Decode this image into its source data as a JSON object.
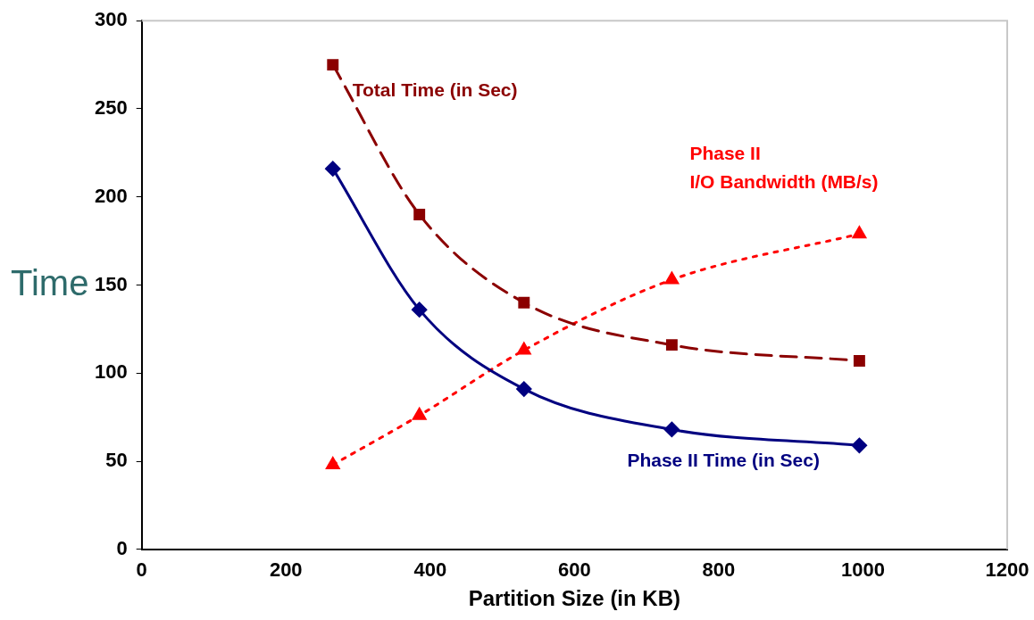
{
  "chart_data": {
    "type": "line",
    "xlabel": "Partition Size (in KB)",
    "ylabel": "Time",
    "x": [
      265,
      385,
      530,
      735,
      995
    ],
    "xlim": [
      0,
      1200
    ],
    "xticks": [
      0,
      200,
      400,
      600,
      800,
      1000,
      1200
    ],
    "ylim": [
      0,
      300
    ],
    "yticks": [
      0,
      50,
      100,
      150,
      200,
      250,
      300
    ],
    "grid": false,
    "legend": false,
    "series": [
      {
        "name": "Total Time (in Sec)",
        "color": "#8b0000",
        "values": [
          275,
          190,
          140,
          116,
          107
        ],
        "marker": "square",
        "line_style": "dashed"
      },
      {
        "name": "Phase II Time (in Sec)",
        "color": "#000080",
        "values": [
          216,
          136,
          91,
          68,
          59
        ],
        "marker": "diamond",
        "line_style": "solid"
      },
      {
        "name": "Phase II\nI/O Bandwidth (MB/s)",
        "color": "#ff0000",
        "values": [
          48,
          76,
          113,
          153,
          179
        ],
        "marker": "triangle",
        "line_style": "dotted"
      }
    ]
  }
}
